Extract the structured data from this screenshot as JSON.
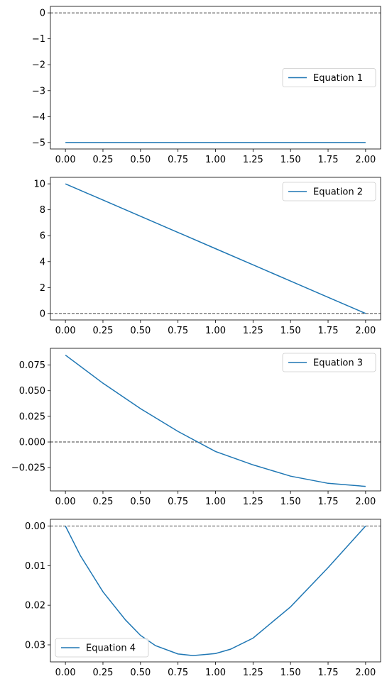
{
  "chart_data": [
    {
      "type": "line",
      "legend": "Equation 1",
      "legend_loc": "center-right",
      "xlim": [
        -0.1,
        2.1
      ],
      "ylim": [
        -5.25,
        0.25
      ],
      "xticks": [
        0,
        0.25,
        0.5,
        0.75,
        1,
        1.25,
        1.5,
        1.75,
        2
      ],
      "xtick_labels": [
        "0.00",
        "0.25",
        "0.50",
        "0.75",
        "1.00",
        "1.25",
        "1.50",
        "1.75",
        "2.00"
      ],
      "yticks": [
        0,
        -1,
        -2,
        -3,
        -4,
        -5
      ],
      "ytick_labels": [
        "0",
        "−1",
        "−2",
        "−3",
        "−4",
        "−5"
      ],
      "zero_line": 0,
      "x": [
        0,
        0.25,
        0.5,
        0.75,
        1,
        1.25,
        1.5,
        1.75,
        2
      ],
      "y": [
        -5,
        -5,
        -5,
        -5,
        -5,
        -5,
        -5,
        -5,
        -5
      ]
    },
    {
      "type": "line",
      "legend": "Equation 2",
      "legend_loc": "upper-right",
      "xlim": [
        -0.1,
        2.1
      ],
      "ylim": [
        -0.5,
        10.5
      ],
      "xticks": [
        0,
        0.25,
        0.5,
        0.75,
        1,
        1.25,
        1.5,
        1.75,
        2
      ],
      "xtick_labels": [
        "0.00",
        "0.25",
        "0.50",
        "0.75",
        "1.00",
        "1.25",
        "1.50",
        "1.75",
        "2.00"
      ],
      "yticks": [
        0,
        2,
        4,
        6,
        8,
        10
      ],
      "ytick_labels": [
        "0",
        "2",
        "4",
        "6",
        "8",
        "10"
      ],
      "zero_line": 0,
      "x": [
        0,
        0.25,
        0.5,
        0.75,
        1,
        1.25,
        1.5,
        1.75,
        2
      ],
      "y": [
        10,
        8.75,
        7.5,
        6.25,
        5,
        3.75,
        2.5,
        1.25,
        0
      ]
    },
    {
      "type": "line",
      "legend": "Equation 3",
      "legend_loc": "upper-right",
      "xlim": [
        -0.1,
        2.1
      ],
      "ylim": [
        -0.0477,
        0.0913
      ],
      "xticks": [
        0,
        0.25,
        0.5,
        0.75,
        1,
        1.25,
        1.5,
        1.75,
        2
      ],
      "xtick_labels": [
        "0.00",
        "0.25",
        "0.50",
        "0.75",
        "1.00",
        "1.25",
        "1.50",
        "1.75",
        "2.00"
      ],
      "yticks": [
        -0.025,
        0,
        0.025,
        0.05,
        0.075
      ],
      "ytick_labels": [
        "−0.025",
        "0.000",
        "0.025",
        "0.050",
        "0.075"
      ],
      "zero_line": 0,
      "x": [
        0,
        0.25,
        0.5,
        0.75,
        1,
        1.25,
        1.5,
        1.75,
        2
      ],
      "y": [
        0.0847,
        0.0573,
        0.0325,
        0.0103,
        -0.0093,
        -0.0223,
        -0.0333,
        -0.0403,
        -0.0433
      ]
    },
    {
      "type": "line",
      "legend": "Equation 4",
      "legend_loc": "lower-left",
      "xlim": [
        -0.1,
        2.1
      ],
      "ylim": [
        -0.0017,
        0.0343
      ],
      "y_inverted": true,
      "xticks": [
        0,
        0.25,
        0.5,
        0.75,
        1,
        1.25,
        1.5,
        1.75,
        2
      ],
      "xtick_labels": [
        "0.00",
        "0.25",
        "0.50",
        "0.75",
        "1.00",
        "1.25",
        "1.50",
        "1.75",
        "2.00"
      ],
      "yticks": [
        0,
        0.01,
        0.02,
        0.03
      ],
      "ytick_labels": [
        "0.00",
        "0.01",
        "0.02",
        "0.03"
      ],
      "zero_line": 0,
      "x": [
        0,
        0.1,
        0.25,
        0.4,
        0.5,
        0.6,
        0.75,
        0.85,
        1,
        1.1,
        1.25,
        1.5,
        1.75,
        2
      ],
      "y": [
        0,
        0.0075,
        0.0166,
        0.0237,
        0.0276,
        0.0302,
        0.0323,
        0.0327,
        0.0322,
        0.0311,
        0.0283,
        0.0204,
        0.0105,
        0
      ]
    }
  ],
  "colors": {
    "series": "#1f77b4",
    "axes": "#000000",
    "legend_border": "#cccccc"
  }
}
